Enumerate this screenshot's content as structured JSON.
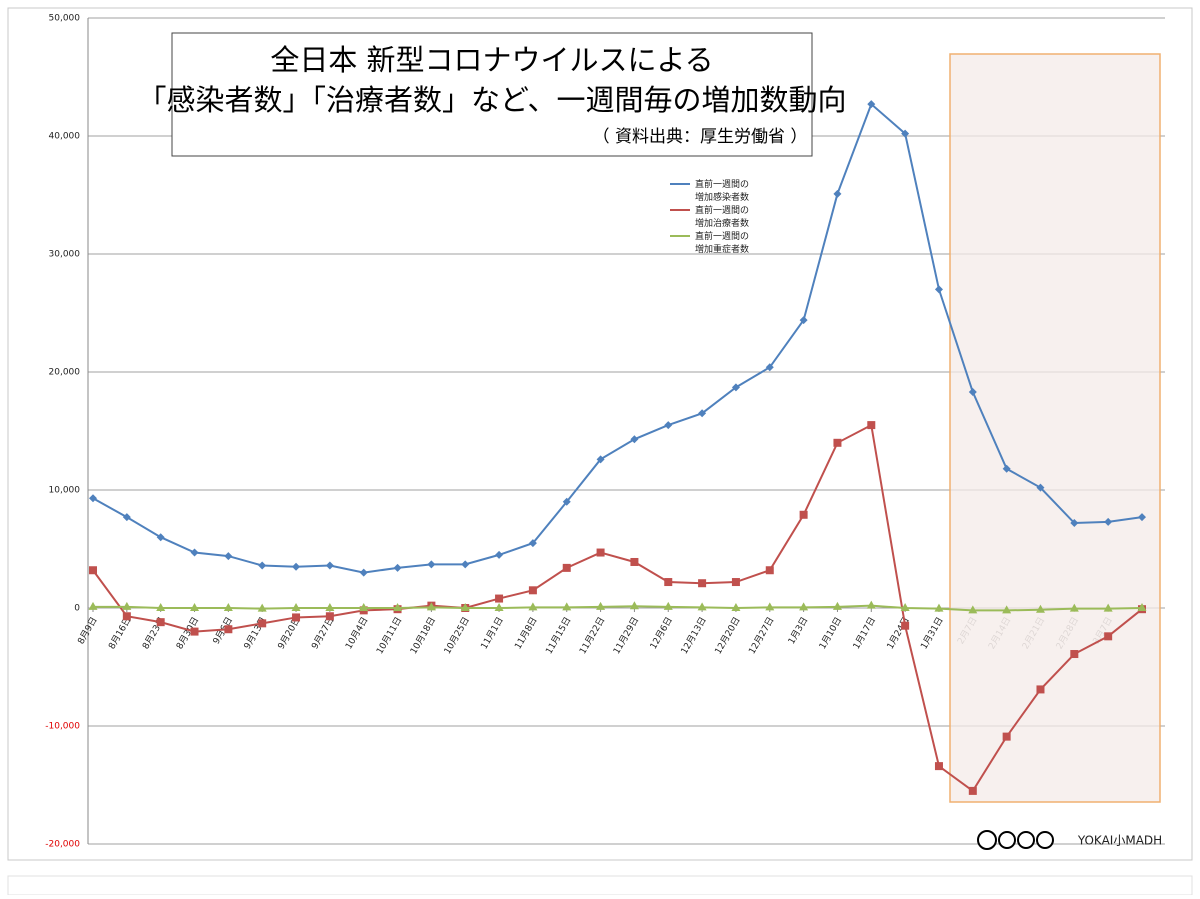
{
  "chart_data": {
    "type": "line",
    "title": [
      "全日本  新型コロナウイルスによる",
      "「感染者数」「治療者数」など、一週間毎の増加数動向"
    ],
    "subtitle": "（ 資料出典：厚生労働省 ）",
    "annotation": "YOKAI小MADH",
    "categories": [
      "8月9日",
      "8月16日",
      "8月23日",
      "8月30日",
      "9月6日",
      "9月13日",
      "9月20日",
      "9月27日",
      "10月4日",
      "10月11日",
      "10月18日",
      "10月25日",
      "11月1日",
      "11月8日",
      "11月15日",
      "11月22日",
      "11月29日",
      "12月6日",
      "12月13日",
      "12月20日",
      "12月27日",
      "1月3日",
      "1月10日",
      "1月17日",
      "1月24日",
      "1月31日",
      "2月7日",
      "2月14日",
      "2月21日",
      "2月28日",
      "3月7日",
      null
    ],
    "series": [
      {
        "name": "直前一週間の\n増加感染者数",
        "color": "#4f81bd",
        "marker": "diamond",
        "values": [
          9300,
          7700,
          6000,
          4700,
          4400,
          3600,
          3500,
          3600,
          3000,
          3400,
          3700,
          3700,
          4500,
          5500,
          9000,
          12600,
          14300,
          15500,
          16500,
          18700,
          20400,
          24400,
          35100,
          42700,
          40200,
          27000,
          18300,
          11800,
          10200,
          7200,
          7300,
          7700
        ]
      },
      {
        "name": "直前一週間の\n増加治療者数",
        "color": "#c0504d",
        "marker": "square",
        "values": [
          3200,
          -700,
          -1200,
          -2000,
          -1800,
          -1300,
          -800,
          -700,
          -200,
          -100,
          200,
          0,
          800,
          1500,
          3400,
          4700,
          3900,
          2200,
          2100,
          2200,
          3200,
          7900,
          14000,
          15500,
          -1500,
          -13400,
          -15500,
          -10900,
          -6900,
          -3900,
          -2400,
          -100
        ]
      },
      {
        "name": "直前一週間の\n増加重症者数",
        "color": "#9bbb59",
        "marker": "triangle",
        "values": [
          100,
          100,
          0,
          0,
          0,
          -50,
          0,
          0,
          0,
          0,
          50,
          0,
          0,
          50,
          50,
          100,
          150,
          100,
          50,
          0,
          50,
          50,
          100,
          200,
          0,
          -50,
          -200,
          -200,
          -150,
          -50,
          -50,
          0
        ]
      }
    ],
    "ylim": [
      -20000,
      50000
    ],
    "yticks": [
      {
        "value": -20000,
        "label": "-20,000"
      },
      {
        "value": -10000,
        "label": "-10,000"
      },
      0,
      {
        "value": 10000,
        "label": "10,000"
      },
      {
        "value": 20000,
        "label": "20,000"
      },
      {
        "value": 30000,
        "label": "30,000"
      },
      {
        "value": 40000,
        "label": "40,000"
      },
      {
        "value": 50000,
        "label": "50,000"
      }
    ],
    "grid": true,
    "negative_tick_color": "#e00000"
  }
}
